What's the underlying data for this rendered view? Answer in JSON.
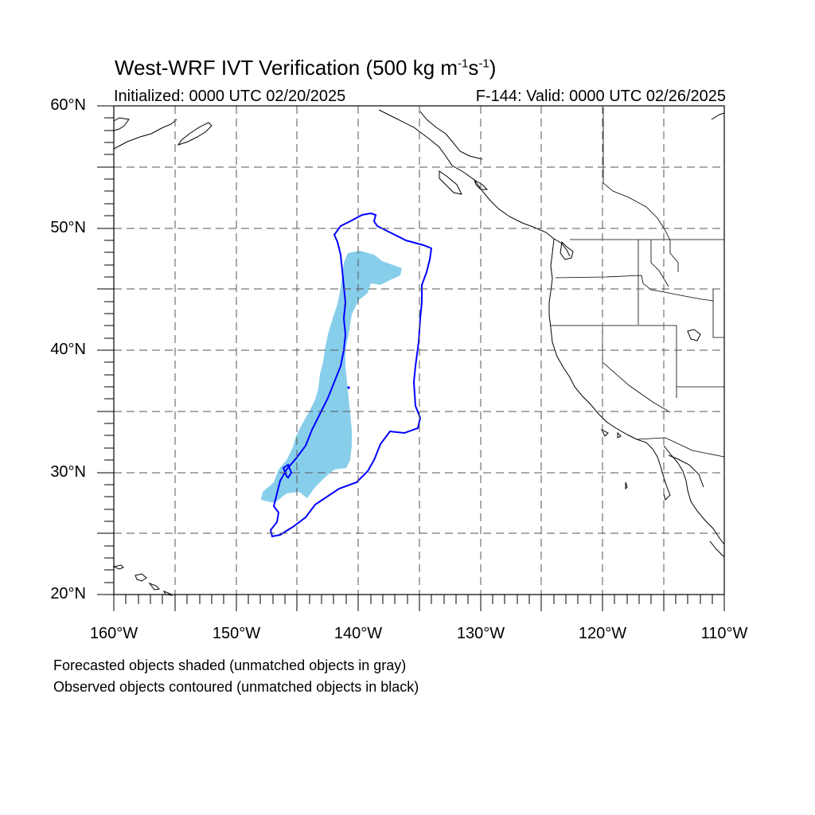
{
  "title": {
    "prefix": "West-WRF IVT Verification (500 kg m",
    "exp1": "-1",
    "mid": "s",
    "exp2": "-1",
    "suffix": ")"
  },
  "subtitle_left": "Initialized: 0000 UTC 02/20/2025",
  "subtitle_right": "F-144: Valid: 0000 UTC 02/26/2025",
  "lat_labels": [
    "60°N",
    "50°N",
    "40°N",
    "30°N",
    "20°N"
  ],
  "lon_labels": [
    "160°W",
    "150°W",
    "140°W",
    "130°W",
    "120°W",
    "110°W"
  ],
  "notes": {
    "forecast": "Forecasted objects shaded (unmatched objects in gray)",
    "observed": "Observed objects contoured (unmatched objects in black)"
  },
  "colors": {
    "forecast_fill": "#87ceeb",
    "observed_contour": "#0000ff",
    "coastline": "#000000",
    "grid": "#555555"
  },
  "map_extent": {
    "lon": [
      -160,
      -110
    ],
    "lat": [
      20,
      60
    ]
  }
}
